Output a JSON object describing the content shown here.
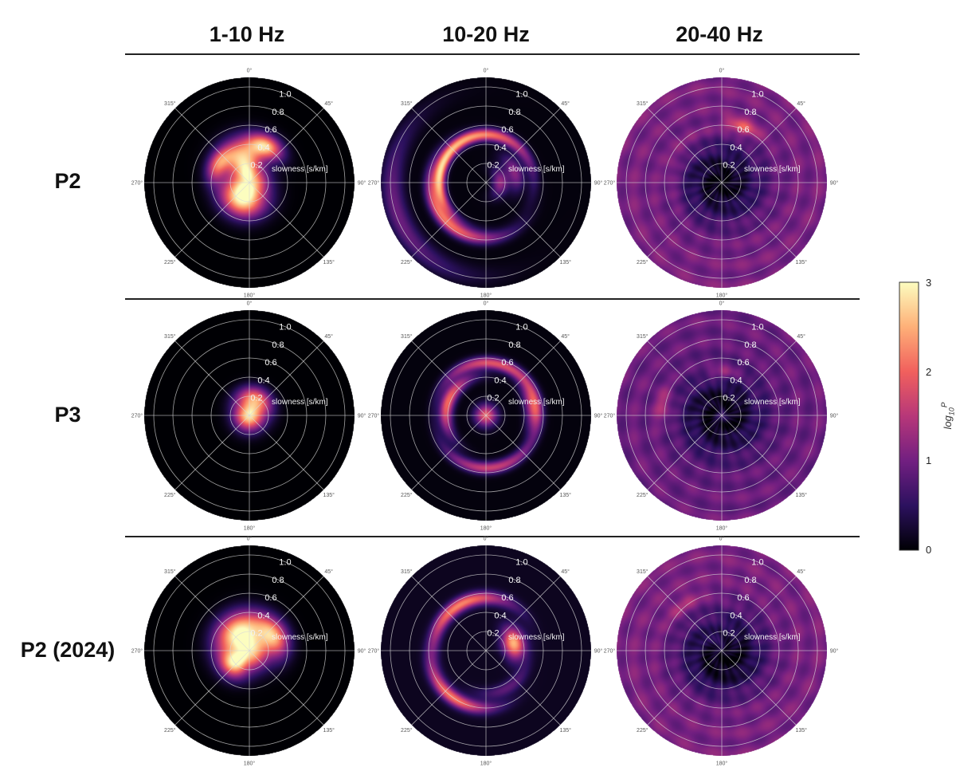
{
  "column_headers": [
    "1-10 Hz",
    "10-20 Hz",
    "20-40 Hz"
  ],
  "row_labels": [
    "P2",
    "P3",
    "P2 (2024)"
  ],
  "colorbar": {
    "label_base": "log",
    "label_sub": "10",
    "label_sup": "P",
    "ticks": [
      "0",
      "1",
      "2",
      "3"
    ],
    "range": [
      0,
      3
    ],
    "colormap": [
      "#000004",
      "#2c115f",
      "#721f81",
      "#b73779",
      "#f1605d",
      "#feb078",
      "#fcfdbf"
    ]
  },
  "chart_data": {
    "type": "heatmap",
    "subtype": "polar beamforming power maps (3x3 grid)",
    "radial_label": "slowness [s/km]",
    "radial_ticks": [
      "0.2",
      "0.4",
      "0.6",
      "0.8",
      "1.0"
    ],
    "radial_range": [
      0,
      1.1
    ],
    "azimuth_ticks": [
      "0°",
      "45°",
      "90°",
      "135°",
      "180°",
      "225°",
      "270°",
      "315°"
    ],
    "color_scale": "magma",
    "value_label": "log10 P",
    "value_range": [
      0,
      3
    ],
    "panels": [
      {
        "row": "P2",
        "band": "1-10 Hz",
        "background": 0.0,
        "features": [
          {
            "kind": "spot",
            "az": 0,
            "r": 0.0,
            "sr": 0.13,
            "sa": 180,
            "amp": 2.9
          },
          {
            "kind": "spot",
            "az": 345,
            "r": 0.28,
            "sr": 0.14,
            "sa": 30,
            "amp": 2.4
          },
          {
            "kind": "spot",
            "az": 25,
            "r": 0.42,
            "sr": 0.08,
            "sa": 18,
            "amp": 2.2
          },
          {
            "kind": "spot",
            "az": 205,
            "r": 0.22,
            "sr": 0.12,
            "sa": 45,
            "amp": 2.3
          },
          {
            "kind": "spot",
            "az": 300,
            "r": 0.38,
            "sr": 0.07,
            "sa": 20,
            "amp": 1.6
          }
        ]
      },
      {
        "row": "P2",
        "band": "10-20 Hz",
        "background": 0.05,
        "features": [
          {
            "kind": "arc",
            "az": 345,
            "r": 0.5,
            "sr": 0.045,
            "sa": 60,
            "amp": 2.2
          },
          {
            "kind": "arc",
            "az": 225,
            "r": 0.58,
            "sr": 0.05,
            "sa": 45,
            "amp": 2.0
          },
          {
            "kind": "arc",
            "az": 270,
            "r": 0.48,
            "sr": 0.04,
            "sa": 35,
            "amp": 1.5
          },
          {
            "kind": "spot",
            "az": 90,
            "r": 0.15,
            "sr": 0.06,
            "sa": 40,
            "amp": 1.2
          },
          {
            "kind": "spot",
            "az": 70,
            "r": 0.32,
            "sr": 0.06,
            "sa": 25,
            "amp": 1.1
          },
          {
            "kind": "spot",
            "az": 250,
            "r": 0.98,
            "sr": 0.08,
            "sa": 40,
            "amp": 0.9
          }
        ]
      },
      {
        "row": "P2",
        "band": "20-40 Hz",
        "background": 1.05,
        "features": [
          {
            "kind": "hole",
            "az": 0,
            "r": 0.0,
            "sr": 0.3,
            "sa": 180,
            "amp": -1.0
          },
          {
            "kind": "arc",
            "az": 20,
            "r": 0.62,
            "sr": 0.05,
            "sa": 12,
            "amp": 1.1
          },
          {
            "kind": "arc",
            "az": 300,
            "r": 0.55,
            "sr": 0.05,
            "sa": 35,
            "amp": 0.3
          }
        ]
      },
      {
        "row": "P3",
        "band": "1-10 Hz",
        "background": 0.0,
        "features": [
          {
            "kind": "spot",
            "az": 0,
            "r": 0.0,
            "sr": 0.11,
            "sa": 180,
            "amp": 2.9
          },
          {
            "kind": "spot",
            "az": 20,
            "r": 0.2,
            "sr": 0.08,
            "sa": 40,
            "amp": 1.8
          }
        ]
      },
      {
        "row": "P3",
        "band": "10-20 Hz",
        "background": 0.05,
        "features": [
          {
            "kind": "arc",
            "az": 10,
            "r": 0.55,
            "sr": 0.045,
            "sa": 45,
            "amp": 1.8
          },
          {
            "kind": "arc",
            "az": 290,
            "r": 0.42,
            "sr": 0.05,
            "sa": 35,
            "amp": 2.0
          },
          {
            "kind": "arc",
            "az": 175,
            "r": 0.55,
            "sr": 0.045,
            "sa": 40,
            "amp": 1.6
          },
          {
            "kind": "spot",
            "az": 0,
            "r": 0.0,
            "sr": 0.08,
            "sa": 180,
            "amp": 1.9
          },
          {
            "kind": "spot",
            "az": 80,
            "r": 0.5,
            "sr": 0.06,
            "sa": 20,
            "amp": 1.6
          }
        ]
      },
      {
        "row": "P3",
        "band": "20-40 Hz",
        "background": 0.95,
        "features": [
          {
            "kind": "hole",
            "az": 0,
            "r": 0.0,
            "sr": 0.3,
            "sa": 180,
            "amp": -0.95
          },
          {
            "kind": "spot",
            "az": 280,
            "r": 0.62,
            "sr": 0.06,
            "sa": 12,
            "amp": 0.6
          },
          {
            "kind": "spot",
            "az": 0,
            "r": 0.45,
            "sr": 0.05,
            "sa": 15,
            "amp": 0.6
          },
          {
            "kind": "spot",
            "az": 180,
            "r": 0.0,
            "sr": 0.05,
            "sa": 180,
            "amp": 0.6
          }
        ]
      },
      {
        "row": "P2 (2024)",
        "band": "1-10 Hz",
        "background": 0.0,
        "features": [
          {
            "kind": "spot",
            "az": 0,
            "r": 0.0,
            "sr": 0.14,
            "sa": 180,
            "amp": 2.9
          },
          {
            "kind": "spot",
            "az": 330,
            "r": 0.25,
            "sr": 0.13,
            "sa": 45,
            "amp": 2.4
          },
          {
            "kind": "spot",
            "az": 60,
            "r": 0.3,
            "sr": 0.1,
            "sa": 30,
            "amp": 2.1
          },
          {
            "kind": "spot",
            "az": 230,
            "r": 0.22,
            "sr": 0.1,
            "sa": 25,
            "amp": 2.0
          }
        ]
      },
      {
        "row": "P2 (2024)",
        "band": "10-20 Hz",
        "background": 0.15,
        "features": [
          {
            "kind": "arc",
            "az": 330,
            "r": 0.55,
            "sr": 0.05,
            "sa": 40,
            "amp": 2.1
          },
          {
            "kind": "arc",
            "az": 215,
            "r": 0.6,
            "sr": 0.05,
            "sa": 30,
            "amp": 2.0
          },
          {
            "kind": "spot",
            "az": 75,
            "r": 0.3,
            "sr": 0.08,
            "sa": 22,
            "amp": 2.4
          },
          {
            "kind": "spot",
            "az": 150,
            "r": 0.45,
            "sr": 0.05,
            "sa": 30,
            "amp": 0.7
          }
        ]
      },
      {
        "row": "P2 (2024)",
        "band": "20-40 Hz",
        "background": 1.05,
        "features": [
          {
            "kind": "hole",
            "az": 160,
            "r": 0.12,
            "sr": 0.25,
            "sa": 180,
            "amp": -1.0
          },
          {
            "kind": "arc",
            "az": 320,
            "r": 0.62,
            "sr": 0.06,
            "sa": 15,
            "amp": 0.4
          }
        ]
      }
    ]
  }
}
